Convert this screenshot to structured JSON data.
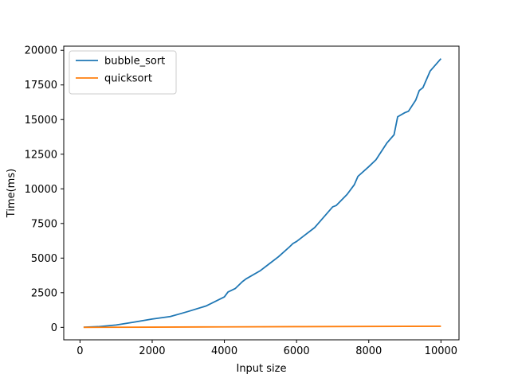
{
  "chart_data": {
    "type": "line",
    "title": "",
    "xlabel": "Input size",
    "ylabel": "Time(ms)",
    "xlim": [
      -450,
      10500
    ],
    "ylim": [
      -900,
      20300
    ],
    "xticks": [
      0,
      2000,
      4000,
      6000,
      8000,
      10000
    ],
    "yticks": [
      0,
      2500,
      5000,
      7500,
      10000,
      12500,
      15000,
      17500,
      20000
    ],
    "grid": false,
    "legend_position": "top-left",
    "series": [
      {
        "name": "bubble_sort",
        "color": "#1f77b4",
        "x": [
          100,
          500,
          1000,
          1500,
          2000,
          2500,
          2800,
          3000,
          3500,
          4000,
          4100,
          4300,
          4500,
          4600,
          5000,
          5200,
          5500,
          5800,
          5900,
          6000,
          6200,
          6500,
          6600,
          7000,
          7100,
          7400,
          7600,
          7700,
          8000,
          8200,
          8300,
          8500,
          8700,
          8800,
          9000,
          9100,
          9300,
          9400,
          9500,
          9700,
          10000
        ],
        "y": [
          10,
          50,
          170,
          380,
          600,
          780,
          1000,
          1150,
          1550,
          2200,
          2550,
          2800,
          3300,
          3500,
          4100,
          4500,
          5100,
          5800,
          6050,
          6200,
          6600,
          7200,
          7500,
          8700,
          8800,
          9600,
          10300,
          10900,
          11600,
          12100,
          12500,
          13300,
          13900,
          15200,
          15500,
          15600,
          16400,
          17100,
          17300,
          18500,
          19400
        ]
      },
      {
        "name": "quicksort",
        "color": "#ff7f0e",
        "x": [
          100,
          2000,
          4000,
          6000,
          8000,
          10000
        ],
        "y": [
          1,
          15,
          35,
          50,
          65,
          80
        ]
      }
    ]
  }
}
